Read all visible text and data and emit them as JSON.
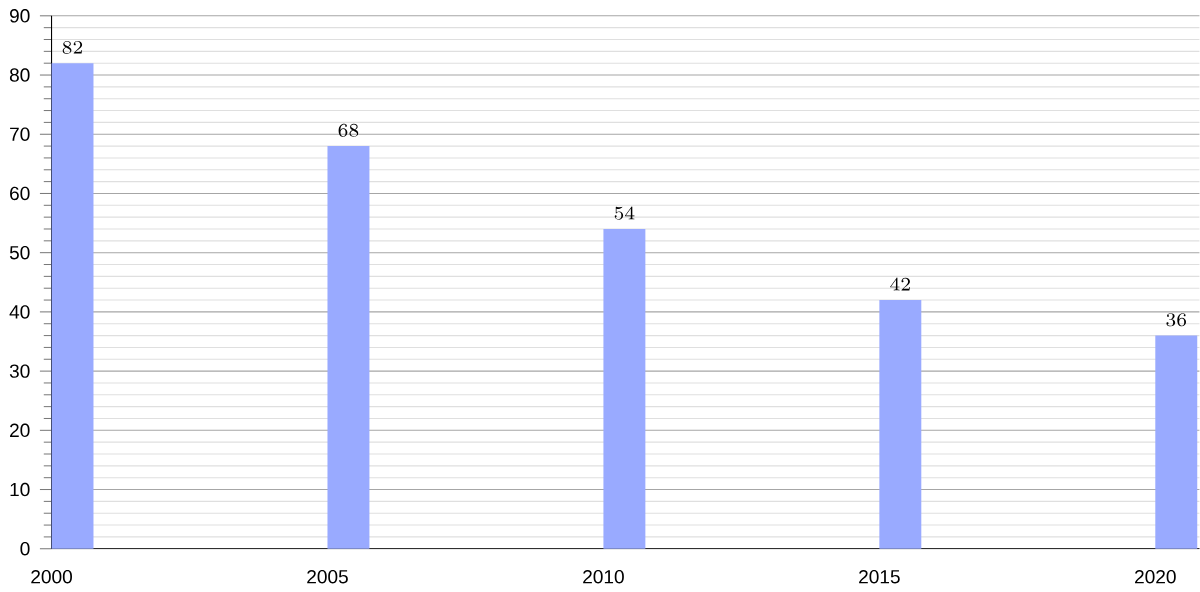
{
  "chart_data": {
    "type": "bar",
    "x": [
      2000,
      2005,
      2010,
      2015,
      2020
    ],
    "values": [
      82,
      68,
      54,
      42,
      36
    ],
    "color": "#99aaff",
    "xlim": [
      2000,
      2020.8
    ],
    "xticks": [
      2000,
      2005,
      2010,
      2015,
      2020
    ],
    "ylim": [
      0,
      90
    ],
    "yticks": [
      0,
      10,
      20,
      30,
      40,
      50,
      60,
      70,
      80,
      90
    ],
    "grid": "y",
    "data_labels": true
  }
}
